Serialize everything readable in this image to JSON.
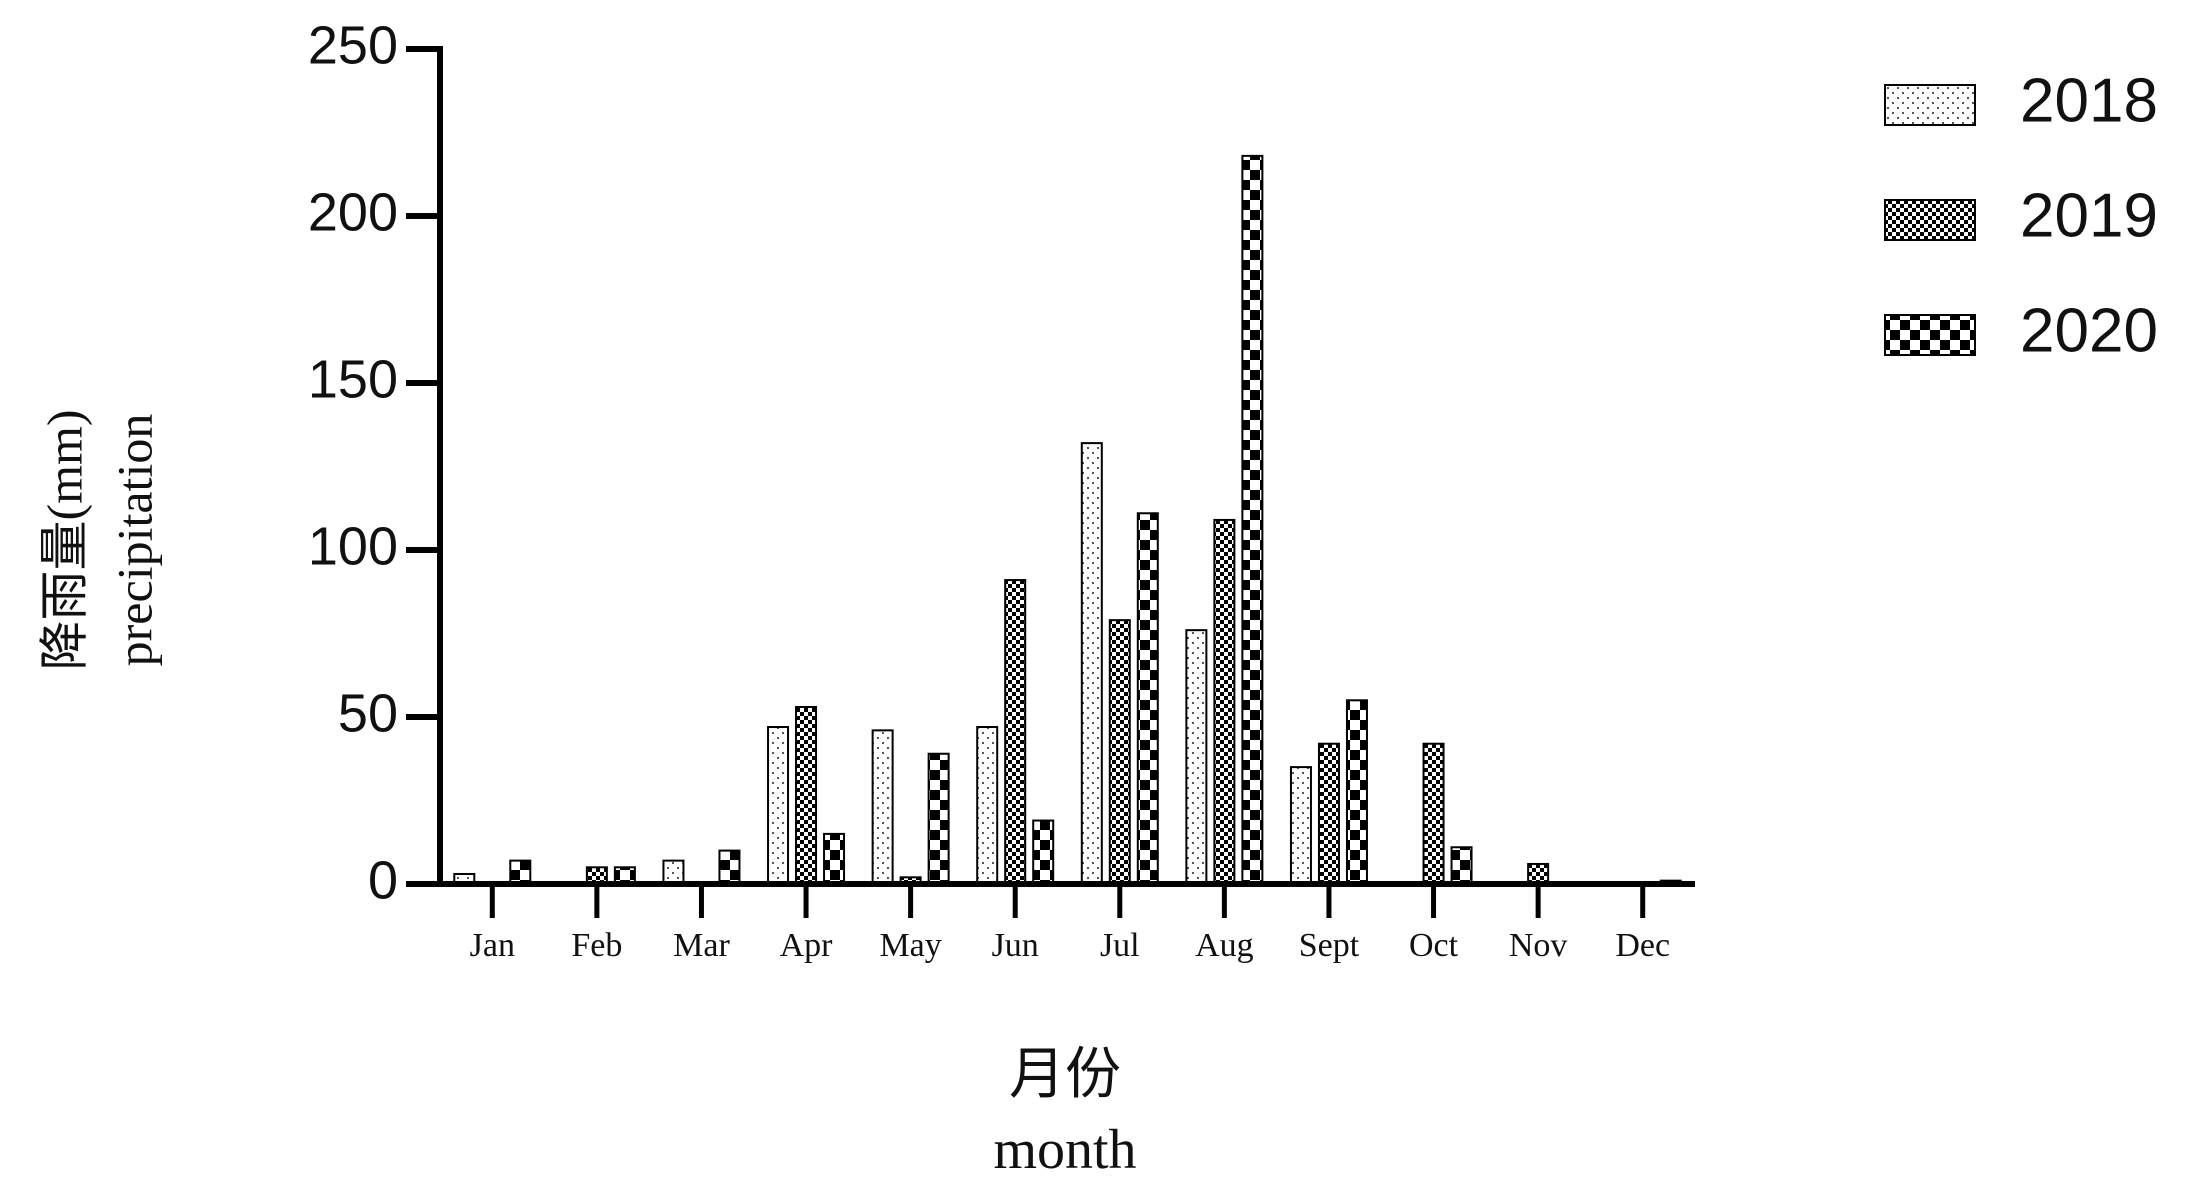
{
  "chart_data": {
    "type": "bar",
    "y_label_zh": "降雨量(mm)",
    "y_label_en": "precipitation",
    "x_label_zh": "月份",
    "x_label_en": "month",
    "categories": [
      "Jan",
      "Feb",
      "Mar",
      "Apr",
      "May",
      "Jun",
      "Jul",
      "Aug",
      "Sept",
      "Oct",
      "Nov",
      "Dec"
    ],
    "series": [
      {
        "name": "2018",
        "color": "#ffffff",
        "pattern": "dots",
        "values": [
          3,
          0,
          7,
          47,
          46,
          47,
          132,
          76,
          35,
          0,
          0,
          0
        ]
      },
      {
        "name": "2019",
        "color": "#000000",
        "pattern": "fine-checker",
        "values": [
          0,
          5,
          0,
          53,
          2,
          91,
          79,
          109,
          42,
          42,
          6,
          0
        ]
      },
      {
        "name": "2020",
        "color": "#000000",
        "pattern": "checker",
        "values": [
          7,
          5,
          10,
          15,
          39,
          19,
          111,
          218,
          55,
          11,
          0,
          1
        ]
      }
    ],
    "ylim": [
      0,
      250
    ],
    "yticks": [
      0,
      50,
      100,
      150,
      200,
      250
    ],
    "legend": "right"
  }
}
